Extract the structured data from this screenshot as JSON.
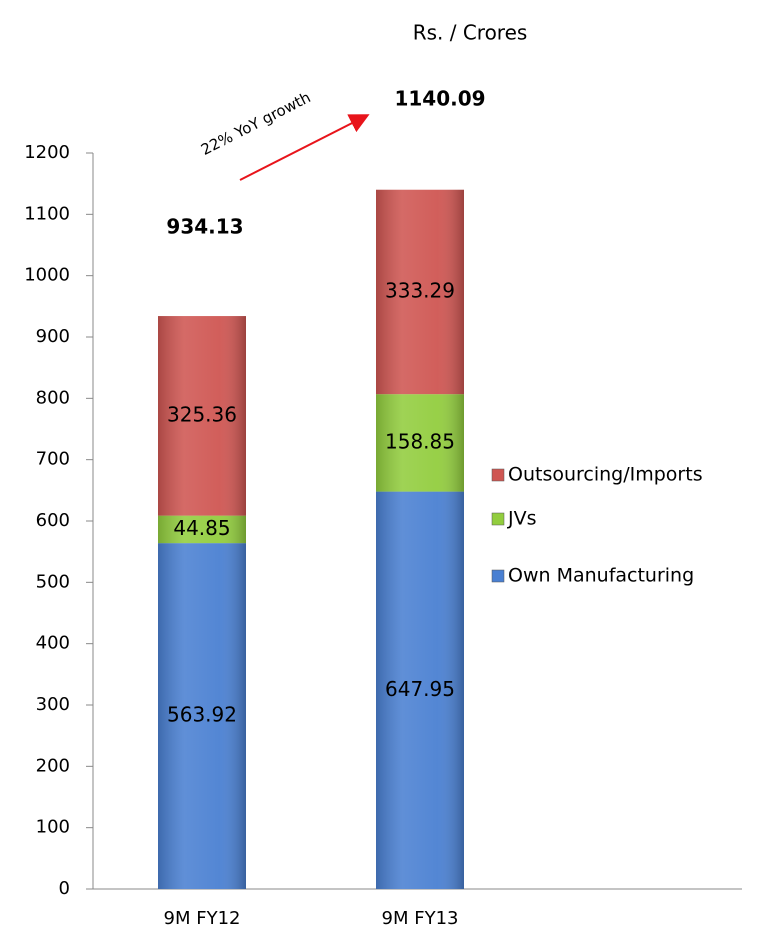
{
  "chart_data": {
    "type": "stacked_bar",
    "title": "Rs. / Crores",
    "categories": [
      "9M FY12",
      "9M FY13"
    ],
    "series": [
      {
        "name": "Own Manufacturing",
        "color": "#4a80d2",
        "values": [
          563.92,
          647.95
        ]
      },
      {
        "name": "JVs",
        "color": "#92cd3e",
        "values": [
          44.85,
          158.85
        ]
      },
      {
        "name": "Outsourcing/Imports",
        "color": "#cf5652",
        "values": [
          325.36,
          333.29
        ]
      }
    ],
    "totals": [
      934.13,
      1140.09
    ],
    "annotation": "22% YoY growth",
    "ylim": [
      0,
      1200
    ],
    "yticks": [
      0,
      100,
      200,
      300,
      400,
      500,
      600,
      700,
      800,
      900,
      1000,
      1100,
      1200
    ],
    "legend": "right"
  }
}
